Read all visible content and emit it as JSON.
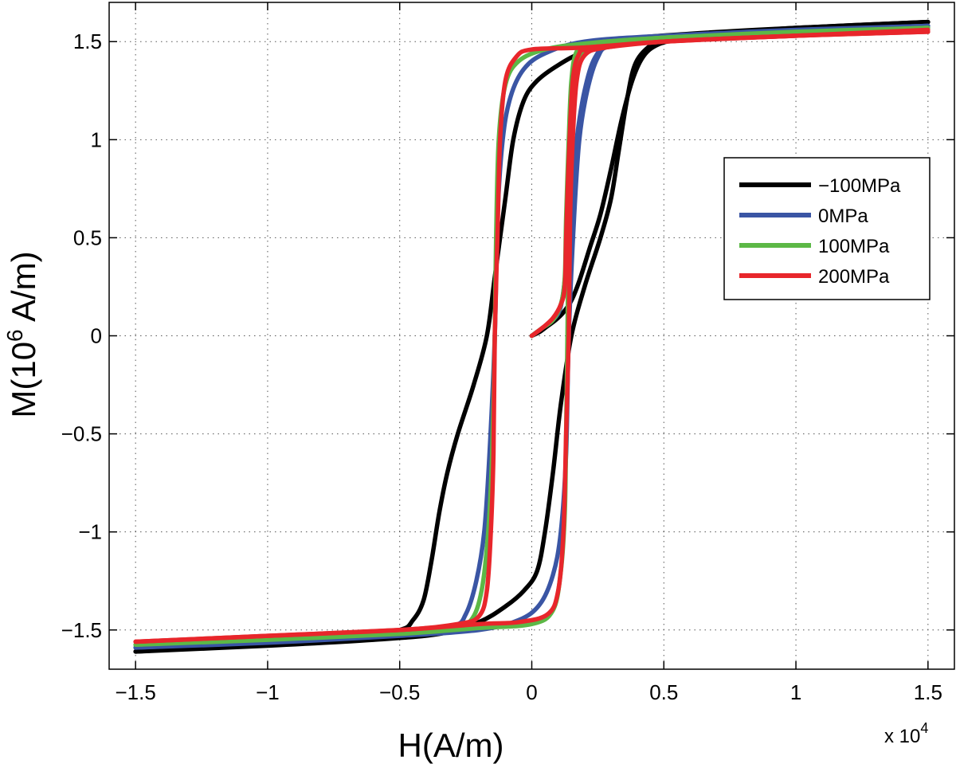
{
  "chart_data": {
    "type": "line",
    "title": "",
    "xlabel": "H(A/m)",
    "ylabel_prefix": "M(10",
    "ylabel_sup": "6",
    "ylabel_suffix": " A/m)",
    "x_exponent_label": "x 10",
    "x_exponent_sup": "4",
    "xlim": [
      -1.6,
      1.6
    ],
    "ylim": [
      -1.7,
      1.7
    ],
    "xticks": [
      -1.5,
      -1,
      -0.5,
      0,
      0.5,
      1,
      1.5
    ],
    "xtick_labels": [
      "−1.5",
      "−1",
      "−0.5",
      "0",
      "0.5",
      "1",
      "1.5"
    ],
    "yticks": [
      -1.5,
      -1,
      -0.5,
      0,
      0.5,
      1,
      1.5
    ],
    "ytick_labels": [
      "−1.5",
      "−1",
      "−0.5",
      "0",
      "0.5",
      "1",
      "1.5"
    ],
    "grid": true,
    "legend_position": "center-right",
    "series": [
      {
        "name": "−100MPa",
        "color": "#000000",
        "initial": [
          [
            0,
            0
          ],
          [
            0.03,
            0.02
          ],
          [
            0.06,
            0.05
          ],
          [
            0.09,
            0.08
          ],
          [
            0.12,
            0.12
          ],
          [
            0.15,
            0.18
          ],
          [
            0.18,
            0.28
          ],
          [
            0.22,
            0.45
          ],
          [
            0.26,
            0.62
          ],
          [
            0.3,
            0.85
          ],
          [
            0.34,
            1.1
          ],
          [
            0.38,
            1.3
          ],
          [
            0.42,
            1.42
          ],
          [
            0.47,
            1.48
          ],
          [
            0.55,
            1.51
          ],
          [
            0.7,
            1.53
          ],
          [
            1.0,
            1.56
          ],
          [
            1.5,
            1.6
          ]
        ],
        "descending": [
          [
            1.5,
            1.6
          ],
          [
            1.0,
            1.57
          ],
          [
            0.6,
            1.54
          ],
          [
            0.35,
            1.51
          ],
          [
            0.2,
            1.45
          ],
          [
            0.1,
            1.38
          ],
          [
            0.02,
            1.3
          ],
          [
            -0.03,
            1.2
          ],
          [
            -0.07,
            1.0
          ],
          [
            -0.1,
            0.7
          ],
          [
            -0.14,
            0.3
          ],
          [
            -0.17,
            0.0
          ],
          [
            -0.22,
            -0.25
          ],
          [
            -0.28,
            -0.5
          ],
          [
            -0.32,
            -0.7
          ],
          [
            -0.35,
            -0.9
          ],
          [
            -0.38,
            -1.15
          ],
          [
            -0.41,
            -1.35
          ],
          [
            -0.45,
            -1.45
          ],
          [
            -0.5,
            -1.5
          ],
          [
            -0.7,
            -1.54
          ],
          [
            -1.0,
            -1.57
          ],
          [
            -1.5,
            -1.61
          ]
        ],
        "ascending": [
          [
            -1.5,
            -1.61
          ],
          [
            -1.0,
            -1.58
          ],
          [
            -0.6,
            -1.55
          ],
          [
            -0.35,
            -1.52
          ],
          [
            -0.2,
            -1.46
          ],
          [
            -0.1,
            -1.38
          ],
          [
            -0.03,
            -1.3
          ],
          [
            0.02,
            -1.2
          ],
          [
            0.05,
            -1.0
          ],
          [
            0.08,
            -0.7
          ],
          [
            0.11,
            -0.35
          ],
          [
            0.15,
            0.0
          ],
          [
            0.2,
            0.25
          ],
          [
            0.26,
            0.5
          ],
          [
            0.3,
            0.7
          ],
          [
            0.33,
            0.95
          ],
          [
            0.36,
            1.2
          ],
          [
            0.39,
            1.38
          ],
          [
            0.44,
            1.47
          ],
          [
            0.5,
            1.51
          ],
          [
            0.7,
            1.54
          ],
          [
            1.0,
            1.57
          ],
          [
            1.5,
            1.6
          ]
        ]
      },
      {
        "name": "0MPa",
        "color": "#3a55a4",
        "initial": [
          [
            0,
            0
          ],
          [
            0.04,
            0.04
          ],
          [
            0.08,
            0.08
          ],
          [
            0.11,
            0.15
          ],
          [
            0.13,
            0.35
          ],
          [
            0.15,
            0.7
          ],
          [
            0.17,
            1.0
          ],
          [
            0.2,
            1.25
          ],
          [
            0.24,
            1.42
          ],
          [
            0.3,
            1.48
          ],
          [
            0.5,
            1.52
          ],
          [
            1.0,
            1.555
          ],
          [
            1.5,
            1.58
          ]
        ],
        "descending": [
          [
            1.5,
            1.58
          ],
          [
            1.0,
            1.56
          ],
          [
            0.5,
            1.53
          ],
          [
            0.2,
            1.5
          ],
          [
            0.05,
            1.44
          ],
          [
            -0.03,
            1.36
          ],
          [
            -0.08,
            1.22
          ],
          [
            -0.11,
            1.0
          ],
          [
            -0.13,
            0.6
          ],
          [
            -0.14,
            0.0
          ],
          [
            -0.16,
            -0.6
          ],
          [
            -0.18,
            -1.0
          ],
          [
            -0.21,
            -1.25
          ],
          [
            -0.25,
            -1.42
          ],
          [
            -0.3,
            -1.48
          ],
          [
            -0.5,
            -1.52
          ],
          [
            -1.0,
            -1.56
          ],
          [
            -1.5,
            -1.59
          ]
        ],
        "ascending": [
          [
            -1.5,
            -1.59
          ],
          [
            -1.0,
            -1.565
          ],
          [
            -0.5,
            -1.53
          ],
          [
            -0.2,
            -1.5
          ],
          [
            -0.05,
            -1.45
          ],
          [
            0.03,
            -1.37
          ],
          [
            0.08,
            -1.22
          ],
          [
            0.11,
            -1.0
          ],
          [
            0.13,
            -0.6
          ],
          [
            0.14,
            0.0
          ],
          [
            0.16,
            0.6
          ],
          [
            0.18,
            1.0
          ],
          [
            0.21,
            1.25
          ],
          [
            0.25,
            1.42
          ],
          [
            0.3,
            1.48
          ],
          [
            0.5,
            1.52
          ],
          [
            1.0,
            1.555
          ],
          [
            1.5,
            1.58
          ]
        ]
      },
      {
        "name": "100MPa",
        "color": "#5cb846",
        "initial": [
          [
            0,
            0
          ],
          [
            0.04,
            0.04
          ],
          [
            0.08,
            0.08
          ],
          [
            0.11,
            0.16
          ],
          [
            0.125,
            0.3
          ],
          [
            0.13,
            0.6
          ],
          [
            0.14,
            1.0
          ],
          [
            0.15,
            1.3
          ],
          [
            0.17,
            1.45
          ],
          [
            0.22,
            1.49
          ],
          [
            0.5,
            1.52
          ],
          [
            1.0,
            1.545
          ],
          [
            1.5,
            1.57
          ]
        ],
        "descending": [
          [
            1.5,
            1.57
          ],
          [
            1.0,
            1.55
          ],
          [
            0.5,
            1.52
          ],
          [
            0.2,
            1.49
          ],
          [
            0.05,
            1.46
          ],
          [
            -0.05,
            1.4
          ],
          [
            -0.1,
            1.28
          ],
          [
            -0.125,
            1.0
          ],
          [
            -0.135,
            0.5
          ],
          [
            -0.14,
            0.0
          ],
          [
            -0.15,
            -0.6
          ],
          [
            -0.165,
            -1.0
          ],
          [
            -0.19,
            -1.3
          ],
          [
            -0.23,
            -1.45
          ],
          [
            -0.3,
            -1.48
          ],
          [
            -0.5,
            -1.51
          ],
          [
            -1.0,
            -1.545
          ],
          [
            -1.5,
            -1.575
          ]
        ],
        "ascending": [
          [
            -1.5,
            -1.575
          ],
          [
            -1.0,
            -1.55
          ],
          [
            -0.5,
            -1.52
          ],
          [
            -0.2,
            -1.49
          ],
          [
            0.0,
            -1.47
          ],
          [
            0.08,
            -1.4
          ],
          [
            0.11,
            -1.2
          ],
          [
            0.125,
            -0.9
          ],
          [
            0.13,
            -0.5
          ],
          [
            0.135,
            0.0
          ],
          [
            0.14,
            0.5
          ],
          [
            0.15,
            1.0
          ],
          [
            0.165,
            1.3
          ],
          [
            0.2,
            1.45
          ],
          [
            0.3,
            1.49
          ],
          [
            0.5,
            1.52
          ],
          [
            1.0,
            1.545
          ],
          [
            1.5,
            1.57
          ]
        ]
      },
      {
        "name": "200MPa",
        "color": "#e8262b",
        "initial": [
          [
            0,
            0
          ],
          [
            0.04,
            0.04
          ],
          [
            0.08,
            0.09
          ],
          [
            0.11,
            0.16
          ],
          [
            0.125,
            0.25
          ],
          [
            0.13,
            0.5
          ],
          [
            0.14,
            0.9
          ],
          [
            0.155,
            1.3
          ],
          [
            0.18,
            1.44
          ],
          [
            0.22,
            1.46
          ],
          [
            0.5,
            1.5
          ],
          [
            1.0,
            1.53
          ],
          [
            1.5,
            1.56
          ]
        ],
        "descending": [
          [
            1.5,
            1.55
          ],
          [
            1.0,
            1.53
          ],
          [
            0.5,
            1.5
          ],
          [
            0.2,
            1.47
          ],
          [
            0.0,
            1.46
          ],
          [
            -0.06,
            1.42
          ],
          [
            -0.1,
            1.3
          ],
          [
            -0.12,
            1.0
          ],
          [
            -0.13,
            0.5
          ],
          [
            -0.14,
            0.0
          ],
          [
            -0.145,
            -0.6
          ],
          [
            -0.155,
            -1.0
          ],
          [
            -0.17,
            -1.3
          ],
          [
            -0.2,
            -1.43
          ],
          [
            -0.28,
            -1.47
          ],
          [
            -0.5,
            -1.5
          ],
          [
            -1.0,
            -1.53
          ],
          [
            -1.5,
            -1.56
          ]
        ],
        "ascending": [
          [
            -1.5,
            -1.56
          ],
          [
            -1.0,
            -1.53
          ],
          [
            -0.5,
            -1.5
          ],
          [
            -0.2,
            -1.47
          ],
          [
            -0.05,
            -1.46
          ],
          [
            0.06,
            -1.42
          ],
          [
            0.1,
            -1.3
          ],
          [
            0.12,
            -1.0
          ],
          [
            0.13,
            -0.5
          ],
          [
            0.14,
            0.0
          ],
          [
            0.145,
            0.6
          ],
          [
            0.155,
            1.0
          ],
          [
            0.17,
            1.3
          ],
          [
            0.2,
            1.43
          ],
          [
            0.28,
            1.47
          ],
          [
            0.5,
            1.5
          ],
          [
            1.0,
            1.53
          ],
          [
            1.5,
            1.55
          ]
        ]
      }
    ]
  }
}
